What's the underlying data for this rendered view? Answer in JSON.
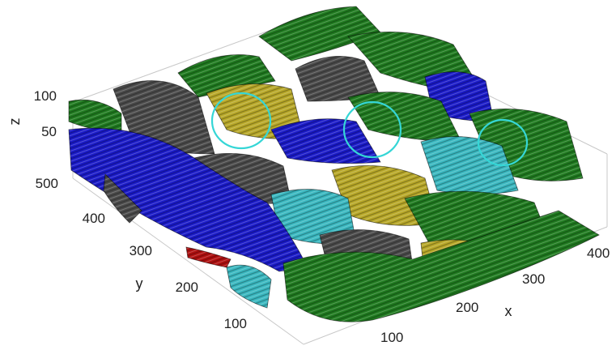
{
  "axes": {
    "x": {
      "label": "x",
      "ticks": [
        "100",
        "200",
        "300",
        "400"
      ]
    },
    "y": {
      "label": "y",
      "ticks": [
        "100",
        "200",
        "300",
        "400",
        "500"
      ]
    },
    "z": {
      "label": "z",
      "ticks": [
        "50",
        "100"
      ]
    }
  },
  "colors": {
    "blue": "#1a1ac8",
    "gray": "#4a4a4a",
    "yellow": "#b8a828",
    "green": "#1f7a1f",
    "cyan": "#3ab8c0",
    "red": "#b01010",
    "circle": "#35d6d6"
  }
}
